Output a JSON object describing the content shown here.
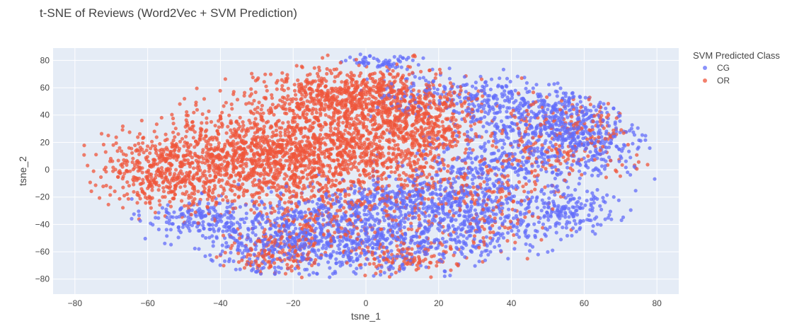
{
  "chart_data": {
    "type": "scatter",
    "title": "t-SNE of Reviews (Word2Vec + SVM Prediction)",
    "xlabel": "tsne_1",
    "ylabel": "tsne_2",
    "xlim": [
      -86,
      86
    ],
    "ylim": [
      -91,
      89
    ],
    "xticks": [
      -80,
      -60,
      -40,
      -20,
      0,
      20,
      40,
      60,
      80
    ],
    "yticks": [
      -80,
      -60,
      -40,
      -20,
      0,
      20,
      40,
      60,
      80
    ],
    "xtick_labels": [
      "−80",
      "−60",
      "−40",
      "−20",
      "0",
      "20",
      "40",
      "60",
      "80"
    ],
    "ytick_labels": [
      "−80",
      "−60",
      "−40",
      "−20",
      "0",
      "20",
      "40",
      "60",
      "80"
    ],
    "grid": true,
    "legend": {
      "title": "SVM Predicted Class",
      "position": "right"
    },
    "series": [
      {
        "name": "CG",
        "color": "#636efa",
        "clusters": [
          {
            "cx": -45,
            "cy": -35,
            "sx": 8,
            "sy": 7,
            "n": 160
          },
          {
            "cx": -20,
            "cy": -50,
            "sx": 14,
            "sy": 14,
            "n": 520
          },
          {
            "cx": 5,
            "cy": -45,
            "sx": 14,
            "sy": 17,
            "n": 520
          },
          {
            "cx": 30,
            "cy": -35,
            "sx": 14,
            "sy": 14,
            "n": 420
          },
          {
            "cx": 45,
            "cy": 40,
            "sx": 12,
            "sy": 13,
            "n": 420
          },
          {
            "cx": 60,
            "cy": 20,
            "sx": 9,
            "sy": 12,
            "n": 320
          },
          {
            "cx": 35,
            "cy": 5,
            "sx": 10,
            "sy": 10,
            "n": 220
          },
          {
            "cx": 55,
            "cy": -30,
            "sx": 6,
            "sy": 10,
            "n": 150
          },
          {
            "cx": 5,
            "cy": 80,
            "sx": 5,
            "sy": 3,
            "n": 60
          },
          {
            "cx": 10,
            "cy": -20,
            "sx": 12,
            "sy": 6,
            "n": 200
          },
          {
            "cx": 20,
            "cy": 55,
            "sx": 10,
            "sy": 8,
            "n": 150
          }
        ]
      },
      {
        "name": "OR",
        "color": "#ef553b",
        "clusters": [
          {
            "cx": -55,
            "cy": 0,
            "sx": 9,
            "sy": 13,
            "n": 460
          },
          {
            "cx": -30,
            "cy": 10,
            "sx": 13,
            "sy": 18,
            "n": 920
          },
          {
            "cx": -5,
            "cy": 15,
            "sx": 14,
            "sy": 22,
            "n": 1050
          },
          {
            "cx": -5,
            "cy": 55,
            "sx": 12,
            "sy": 9,
            "n": 520
          },
          {
            "cx": 15,
            "cy": 35,
            "sx": 8,
            "sy": 16,
            "n": 420
          },
          {
            "cx": 30,
            "cy": -20,
            "sx": 12,
            "sy": 18,
            "n": 230
          },
          {
            "cx": 55,
            "cy": 25,
            "sx": 10,
            "sy": 14,
            "n": 230
          },
          {
            "cx": -25,
            "cy": -60,
            "sx": 6,
            "sy": 8,
            "n": 160
          },
          {
            "cx": 10,
            "cy": -65,
            "sx": 8,
            "sy": 6,
            "n": 120
          },
          {
            "cx": -10,
            "cy": -40,
            "sx": 10,
            "sy": 10,
            "n": 150
          }
        ]
      }
    ]
  }
}
